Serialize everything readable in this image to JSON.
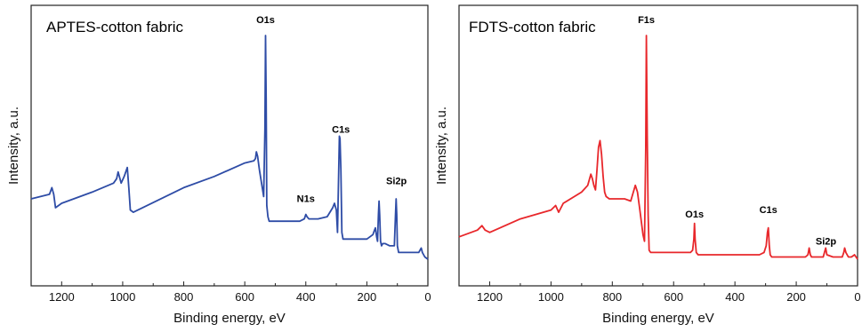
{
  "chart_data": [
    {
      "type": "line",
      "title": "APTES-cotton fabric",
      "xlabel": "Binding energy, eV",
      "ylabel": "Intensity, a.u.",
      "xlim": [
        1300,
        0
      ],
      "x_reversed": true,
      "ylim": [
        0,
        100
      ],
      "x_ticks": [
        1200,
        1000,
        800,
        600,
        400,
        200,
        0
      ],
      "y_ticks_shown": false,
      "grid": false,
      "color": "#2E4CA6",
      "annotations": [
        {
          "text": "O1s",
          "x": 532,
          "y": 104
        },
        {
          "text": "N1s",
          "x": 400,
          "y": 24
        },
        {
          "text": "C1s",
          "x": 285,
          "y": 55
        },
        {
          "text": "Si2p",
          "x": 103,
          "y": 32
        }
      ],
      "series": [
        {
          "x": [
            1300,
            1240,
            1232,
            1226,
            1220,
            1200,
            1100,
            1030,
            1020,
            1015,
            1005,
            995,
            985,
            980,
            975,
            965,
            800,
            700,
            600,
            570,
            565,
            562,
            558,
            552,
            545,
            538,
            534,
            532,
            530,
            528,
            524,
            520,
            510,
            500,
            450,
            420,
            405,
            400,
            396,
            390,
            360,
            330,
            312,
            306,
            300,
            296,
            290,
            288,
            285,
            282,
            278,
            270,
            250,
            200,
            180,
            175,
            172,
            170,
            168,
            165,
            162,
            160,
            158,
            155,
            152,
            148,
            140,
            125,
            110,
            106,
            104,
            102,
            100,
            96,
            90,
            60,
            30,
            26,
            22,
            18,
            10,
            0
          ],
          "y": [
            27,
            29,
            32,
            29,
            23,
            25,
            30,
            34,
            36,
            39,
            34,
            37,
            41,
            32,
            22,
            21,
            32,
            37,
            43,
            44,
            45,
            48,
            46,
            40,
            34,
            28,
            58,
            100,
            72,
            24,
            19,
            17,
            17,
            17,
            17,
            17,
            18,
            20,
            19,
            18,
            18,
            19,
            23,
            25,
            22,
            12,
            55,
            54,
            40,
            12,
            9,
            9,
            9,
            9,
            11,
            13,
            14,
            12,
            10,
            8,
            20,
            26,
            20,
            8,
            6,
            7,
            7,
            6,
            6,
            20,
            27,
            20,
            6,
            3,
            3,
            3,
            3,
            4,
            5,
            3,
            1,
            0
          ]
        }
      ]
    },
    {
      "type": "line",
      "title": "FDTS-cotton fabric",
      "xlabel": "Binding energy, eV",
      "ylabel": "Intensity, a.u.",
      "xlim": [
        1300,
        0
      ],
      "x_reversed": true,
      "ylim": [
        0,
        100
      ],
      "x_ticks": [
        1200,
        1000,
        800,
        600,
        400,
        200,
        0
      ],
      "y_ticks_shown": false,
      "grid": false,
      "color": "#E8272B",
      "annotations": [
        {
          "text": "F1s",
          "x": 689,
          "y": 104
        },
        {
          "text": "O1s",
          "x": 532,
          "y": 17
        },
        {
          "text": "C1s",
          "x": 291,
          "y": 19
        },
        {
          "text": "Si2p",
          "x": 103,
          "y": 5
        }
      ],
      "series": [
        {
          "x": [
            1300,
            1240,
            1225,
            1215,
            1200,
            1100,
            1000,
            985,
            975,
            960,
            900,
            880,
            870,
            865,
            860,
            855,
            850,
            845,
            840,
            835,
            830,
            825,
            820,
            810,
            780,
            760,
            740,
            725,
            718,
            710,
            700,
            695,
            691,
            689,
            686,
            683,
            680,
            675,
            660,
            600,
            560,
            545,
            538,
            534,
            532,
            530,
            526,
            520,
            500,
            400,
            320,
            305,
            298,
            294,
            291,
            288,
            285,
            280,
            260,
            200,
            170,
            162,
            158,
            154,
            150,
            130,
            112,
            108,
            104,
            100,
            80,
            50,
            45,
            42,
            38,
            30,
            20,
            10,
            0
          ],
          "y": [
            10,
            13,
            15,
            13,
            12,
            18,
            22,
            24,
            21,
            25,
            30,
            33,
            38,
            36,
            33,
            31,
            40,
            50,
            53,
            47,
            37,
            30,
            28,
            27,
            27,
            27,
            26,
            33,
            30,
            22,
            11,
            8,
            50,
            100,
            55,
            20,
            4,
            3,
            3,
            3,
            3,
            3,
            4,
            9,
            16,
            9,
            3,
            2,
            2,
            2,
            2,
            3,
            6,
            12,
            14,
            6,
            2,
            1,
            1,
            1,
            1,
            2,
            5,
            2,
            1,
            1,
            1,
            3,
            5,
            2,
            1,
            1,
            3,
            5,
            3,
            1,
            1,
            2,
            0
          ]
        }
      ]
    }
  ]
}
